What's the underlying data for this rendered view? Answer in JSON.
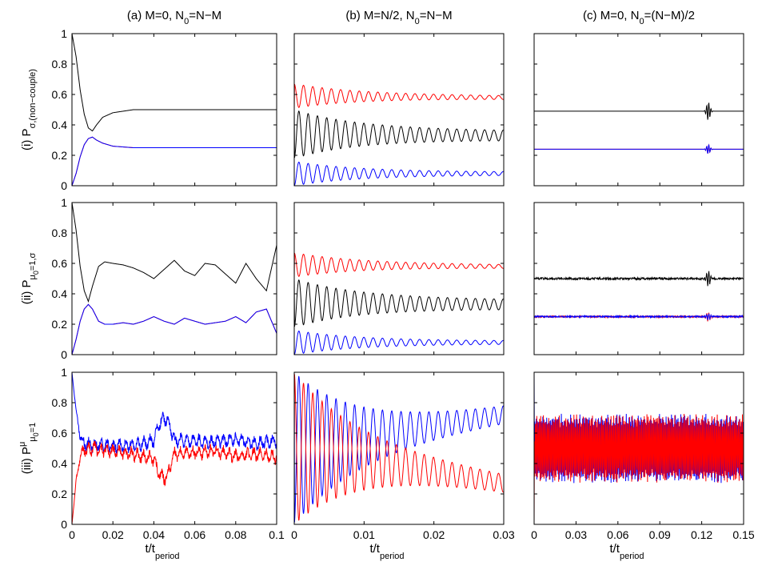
{
  "figure": {
    "column_titles": [
      {
        "main": "(a) M=0, N",
        "sub": "0",
        "rest": "=N−M"
      },
      {
        "main": "(b) M=N/2, N",
        "sub": "0",
        "rest": "=N−M"
      },
      {
        "main": "(c) M=0, N",
        "sub": "0",
        "rest": "=(N−M)/2"
      }
    ],
    "row_labels": [
      {
        "roman": "(i)",
        "main": "P",
        "sub": "σ,(non−couple)",
        "sup": ""
      },
      {
        "roman": "(ii)",
        "main": "P",
        "sub": "μ",
        "subsub": "0",
        "sub2": "=1,σ",
        "sup": ""
      },
      {
        "roman": "(iii)",
        "main": "P",
        "sup": "μ",
        "sub": "μ",
        "subsub": "0",
        "sub2": "=1"
      }
    ],
    "xlabel": {
      "main": "t/t",
      "sub": "period"
    },
    "y_ticks": [
      "0",
      "0.2",
      "0.4",
      "0.6",
      "0.8",
      "1"
    ],
    "x_ticks": [
      [
        "0",
        "0.02",
        "0.04",
        "0.06",
        "0.08",
        "0.1"
      ],
      [
        "0",
        "0.01",
        "0.02",
        "0.03"
      ],
      [
        "0",
        "0.03",
        "0.06",
        "0.09",
        "0.12",
        "0.15"
      ]
    ],
    "colors": {
      "black": "#000000",
      "red": "#ff0000",
      "blue": "#0000ff",
      "magenta": "#a0208a"
    }
  },
  "chart_data": [
    {
      "type": "line",
      "panel": "(a)(i)",
      "xlim": [
        0,
        0.1
      ],
      "ylim": [
        0,
        1
      ],
      "series": [
        {
          "color": "black",
          "x": [
            0,
            0.002,
            0.004,
            0.006,
            0.008,
            0.01,
            0.012,
            0.015,
            0.02,
            0.03,
            0.05,
            0.1
          ],
          "y": [
            1,
            0.85,
            0.63,
            0.47,
            0.38,
            0.36,
            0.4,
            0.45,
            0.48,
            0.5,
            0.5,
            0.5
          ]
        },
        {
          "color": "red",
          "x": [
            0,
            0.002,
            0.004,
            0.006,
            0.008,
            0.01,
            0.012,
            0.015,
            0.02,
            0.03,
            0.05,
            0.1
          ],
          "y": [
            0,
            0.08,
            0.19,
            0.27,
            0.31,
            0.32,
            0.3,
            0.28,
            0.26,
            0.25,
            0.25,
            0.25
          ]
        },
        {
          "color": "blue",
          "x": [
            0,
            0.002,
            0.004,
            0.006,
            0.008,
            0.01,
            0.012,
            0.015,
            0.02,
            0.03,
            0.05,
            0.1
          ],
          "y": [
            0,
            0.08,
            0.19,
            0.27,
            0.31,
            0.32,
            0.3,
            0.28,
            0.26,
            0.25,
            0.25,
            0.25
          ]
        }
      ]
    },
    {
      "type": "line",
      "panel": "(b)(i)",
      "xlim": [
        0,
        0.03
      ],
      "ylim": [
        0,
        1
      ],
      "series": [
        {
          "color": "red",
          "osc": {
            "mean": [
              0.59,
              0.58
            ],
            "amp": [
              0.08,
              0.01
            ],
            "period": 0.00133,
            "phase": 0.5
          }
        },
        {
          "color": "black",
          "osc": {
            "mean": [
              0.34,
              0.33
            ],
            "amp": [
              0.16,
              0.03
            ],
            "period": 0.00133,
            "phase": 0
          }
        },
        {
          "color": "blue",
          "osc": {
            "mean": [
              0.08,
              0.08
            ],
            "amp": [
              0.08,
              0.01
            ],
            "period": 0.00133,
            "phase": 0
          }
        }
      ]
    },
    {
      "type": "line",
      "panel": "(c)(i)",
      "xlim": [
        0,
        0.15
      ],
      "ylim": [
        0,
        1
      ],
      "series": [
        {
          "color": "black",
          "flat": 0.49,
          "burst": {
            "center": 0.1247,
            "amp": 0.06
          }
        },
        {
          "color": "red",
          "flat": 0.24,
          "burst": {
            "center": 0.1247,
            "amp": 0.03
          }
        },
        {
          "color": "blue",
          "flat": 0.24,
          "burst": {
            "center": 0.1247,
            "amp": 0.03
          }
        }
      ]
    },
    {
      "type": "line",
      "panel": "(a)(ii)",
      "xlim": [
        0,
        0.1
      ],
      "ylim": [
        0,
        1
      ],
      "series": [
        {
          "color": "black",
          "x": [
            0,
            0.002,
            0.004,
            0.006,
            0.008,
            0.01,
            0.013,
            0.016,
            0.02,
            0.025,
            0.03,
            0.035,
            0.04,
            0.045,
            0.05,
            0.055,
            0.06,
            0.065,
            0.07,
            0.075,
            0.08,
            0.085,
            0.09,
            0.095,
            0.1
          ],
          "y": [
            1,
            0.82,
            0.58,
            0.42,
            0.35,
            0.45,
            0.58,
            0.61,
            0.6,
            0.59,
            0.57,
            0.54,
            0.5,
            0.56,
            0.62,
            0.55,
            0.52,
            0.6,
            0.59,
            0.53,
            0.47,
            0.6,
            0.5,
            0.42,
            0.72
          ]
        },
        {
          "color": "red",
          "x": [
            0,
            0.002,
            0.004,
            0.006,
            0.008,
            0.01,
            0.013,
            0.016,
            0.02,
            0.025,
            0.03,
            0.035,
            0.04,
            0.045,
            0.05,
            0.055,
            0.06,
            0.065,
            0.07,
            0.075,
            0.08,
            0.085,
            0.09,
            0.095,
            0.1
          ],
          "y": [
            0,
            0.1,
            0.22,
            0.3,
            0.33,
            0.3,
            0.22,
            0.2,
            0.2,
            0.21,
            0.2,
            0.22,
            0.25,
            0.22,
            0.2,
            0.24,
            0.22,
            0.2,
            0.21,
            0.22,
            0.25,
            0.21,
            0.28,
            0.3,
            0.14
          ]
        },
        {
          "color": "blue",
          "x": [
            0,
            0.002,
            0.004,
            0.006,
            0.008,
            0.01,
            0.013,
            0.016,
            0.02,
            0.025,
            0.03,
            0.035,
            0.04,
            0.045,
            0.05,
            0.055,
            0.06,
            0.065,
            0.07,
            0.075,
            0.08,
            0.085,
            0.09,
            0.095,
            0.1
          ],
          "y": [
            0,
            0.1,
            0.22,
            0.3,
            0.33,
            0.3,
            0.22,
            0.2,
            0.2,
            0.21,
            0.2,
            0.22,
            0.25,
            0.22,
            0.2,
            0.24,
            0.22,
            0.2,
            0.21,
            0.22,
            0.25,
            0.21,
            0.28,
            0.3,
            0.14
          ]
        }
      ]
    },
    {
      "type": "line",
      "panel": "(b)(ii)",
      "xlim": [
        0,
        0.03
      ],
      "ylim": [
        0,
        1
      ],
      "series": [
        {
          "color": "red",
          "osc": {
            "mean": [
              0.59,
              0.58
            ],
            "amp": [
              0.08,
              0.01
            ],
            "period": 0.00133,
            "phase": 0.5
          }
        },
        {
          "color": "black",
          "osc": {
            "mean": [
              0.34,
              0.33
            ],
            "amp": [
              0.16,
              0.03
            ],
            "period": 0.00133,
            "phase": 0
          }
        },
        {
          "color": "blue",
          "osc": {
            "mean": [
              0.08,
              0.08
            ],
            "amp": [
              0.08,
              0.01
            ],
            "period": 0.00133,
            "phase": 0
          }
        }
      ]
    },
    {
      "type": "line",
      "panel": "(c)(ii)",
      "xlim": [
        0,
        0.15
      ],
      "ylim": [
        0,
        1
      ],
      "series": [
        {
          "color": "black",
          "flat": 0.5,
          "noise": 0.007,
          "burst": {
            "center": 0.1247,
            "amp": 0.05
          }
        },
        {
          "color": "red",
          "flat": 0.25,
          "noise": 0.005,
          "burst": {
            "center": 0.1247,
            "amp": 0.03
          }
        },
        {
          "color": "blue",
          "flat": 0.25,
          "noise": 0.005,
          "burst": {
            "center": 0.1247,
            "amp": 0.02
          }
        }
      ]
    },
    {
      "type": "line",
      "panel": "(a)(iii)",
      "xlim": [
        0,
        0.1
      ],
      "ylim": [
        0,
        1
      ],
      "series": [
        {
          "color": "blue",
          "x": [
            0,
            0.002,
            0.004,
            0.006,
            0.01,
            0.02,
            0.03,
            0.04,
            0.042,
            0.045,
            0.047,
            0.05,
            0.06,
            0.07,
            0.08,
            0.09,
            0.1
          ],
          "y": [
            1,
            0.75,
            0.58,
            0.53,
            0.52,
            0.52,
            0.52,
            0.55,
            0.65,
            0.7,
            0.68,
            0.55,
            0.55,
            0.54,
            0.56,
            0.53,
            0.55
          ],
          "noise": 0.05,
          "decay_noise": true
        },
        {
          "color": "red",
          "x": [
            0,
            0.002,
            0.004,
            0.006,
            0.01,
            0.02,
            0.03,
            0.04,
            0.042,
            0.045,
            0.047,
            0.05,
            0.06,
            0.07,
            0.08,
            0.09,
            0.1
          ],
          "y": [
            0,
            0.28,
            0.45,
            0.49,
            0.5,
            0.48,
            0.46,
            0.43,
            0.35,
            0.3,
            0.34,
            0.46,
            0.47,
            0.48,
            0.45,
            0.46,
            0.44
          ],
          "noise": 0.05,
          "decay_noise": true
        }
      ]
    },
    {
      "type": "line",
      "panel": "(b)(iii)",
      "xlim": [
        0,
        0.03
      ],
      "ylim": [
        0,
        1
      ],
      "series": [
        {
          "color": "blue",
          "osc": {
            "mean": [
              0.5,
              0.72
            ],
            "amp": [
              0.5,
              0.04
            ],
            "period": 0.00133,
            "phase": 0
          }
        },
        {
          "color": "red",
          "osc": {
            "mean": [
              0.5,
              0.27
            ],
            "amp": [
              0.5,
              0.04
            ],
            "period": 0.00133,
            "phase": 0.5
          }
        }
      ]
    },
    {
      "type": "line",
      "panel": "(c)(iii)",
      "xlim": [
        0,
        0.15
      ],
      "ylim": [
        0,
        1
      ],
      "series": [
        {
          "color": "blue",
          "dense": {
            "mean": 0.5,
            "amp": 0.2,
            "period": 0.00095,
            "phase": 0
          }
        },
        {
          "color": "red",
          "dense": {
            "mean": 0.5,
            "amp": 0.2,
            "period": 0.00095,
            "phase": 0.5
          }
        }
      ]
    }
  ]
}
